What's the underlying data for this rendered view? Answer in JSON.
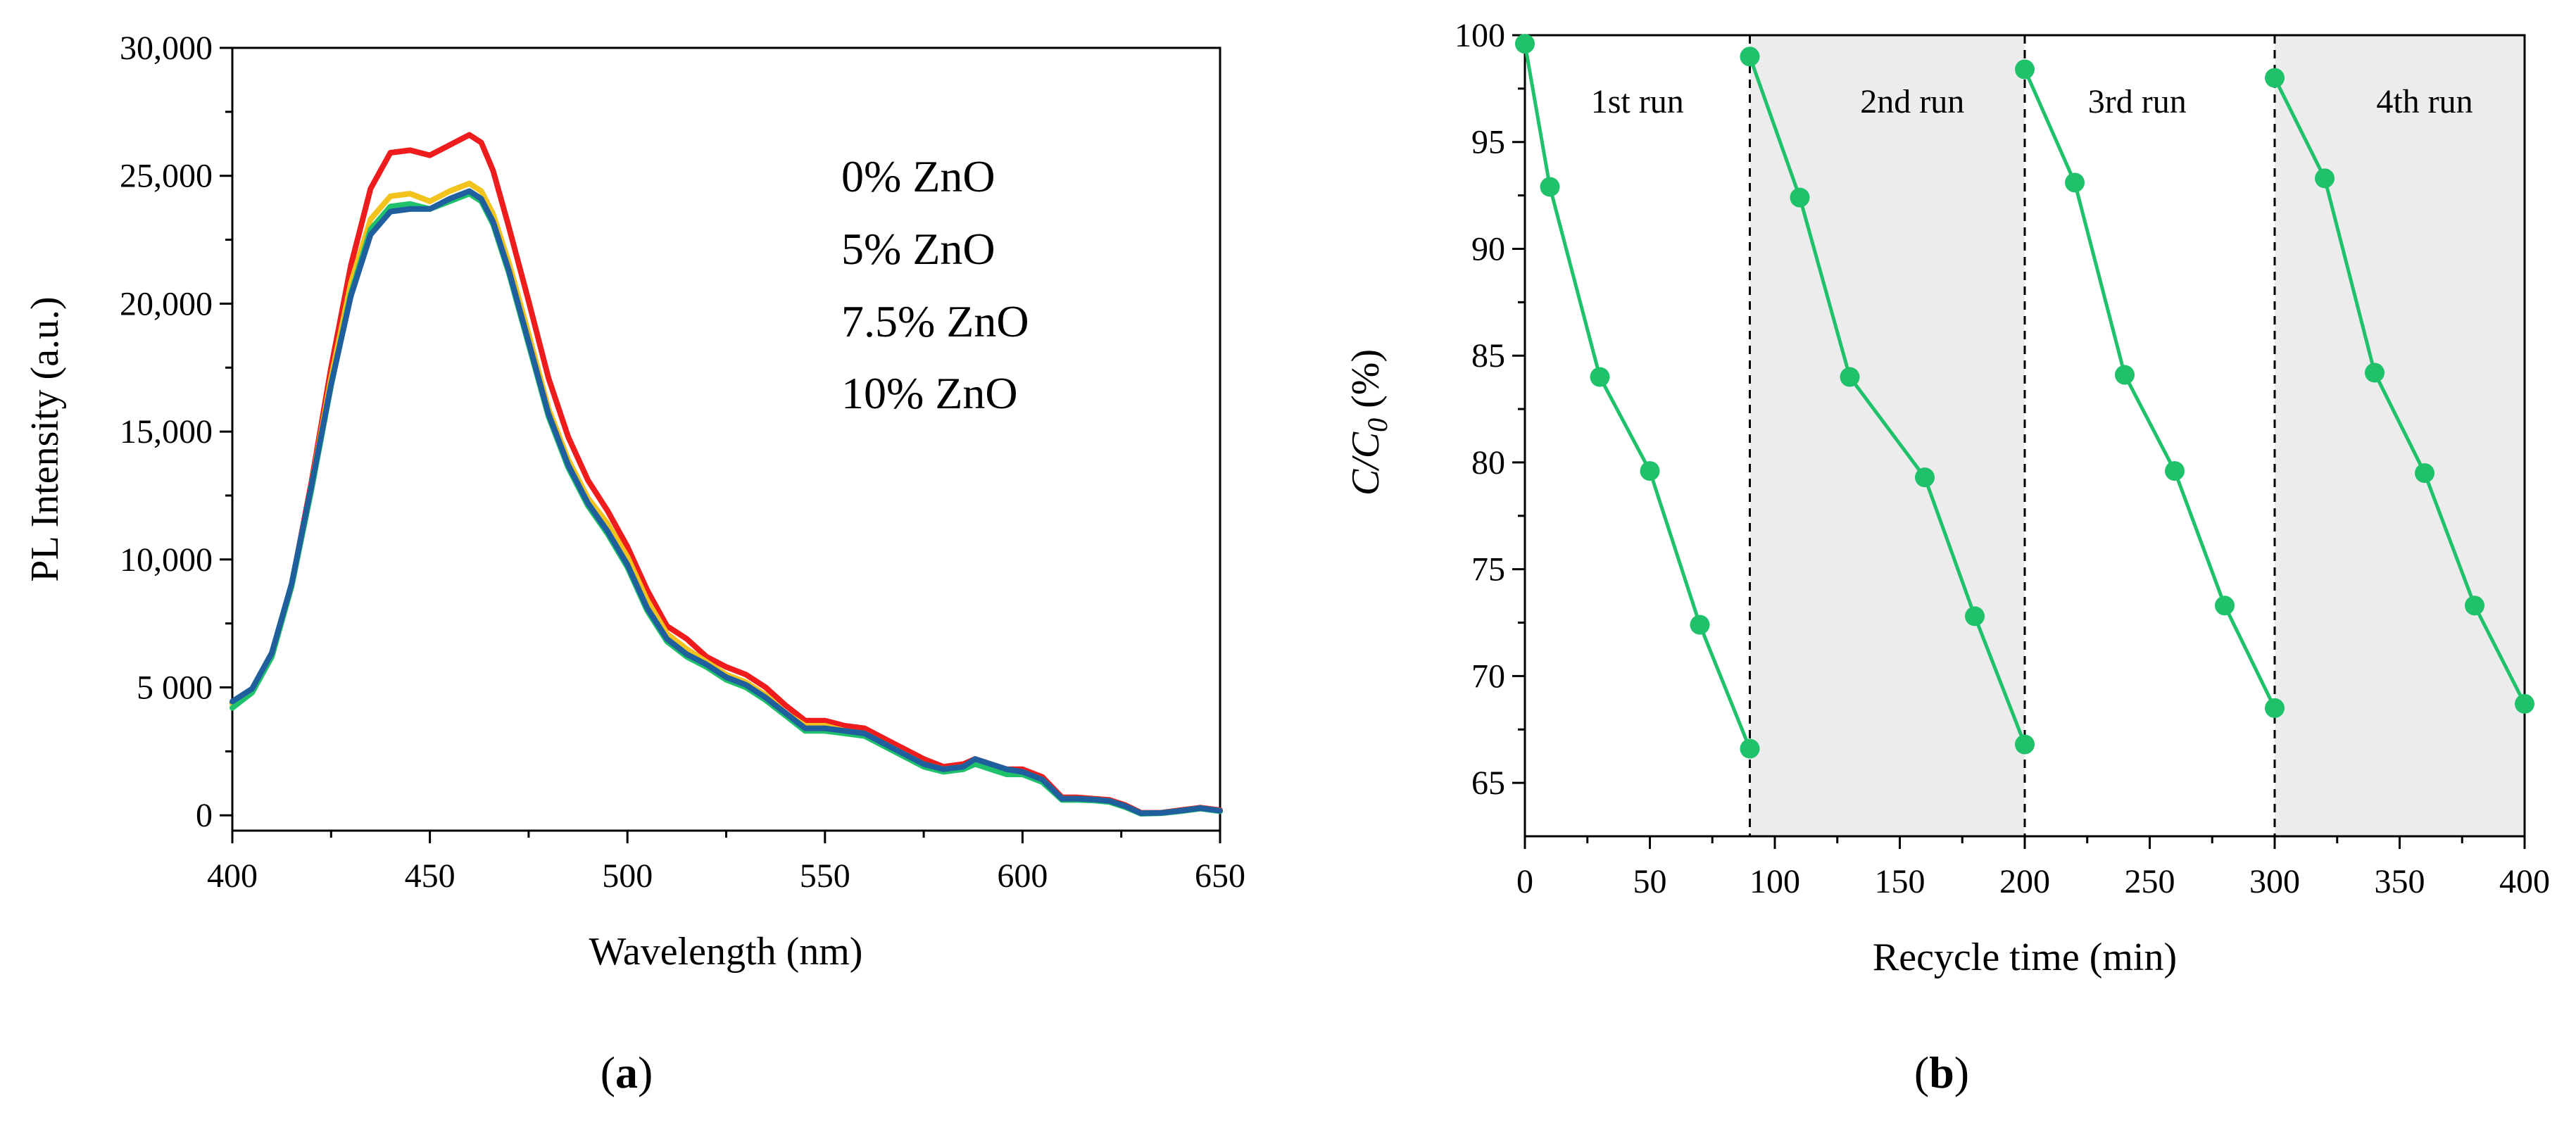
{
  "chart_data": [
    {
      "panel": "a",
      "type": "line",
      "xlabel": "Wavelength (nm)",
      "ylabel": "PL Intensity (a.u.)",
      "xlim": [
        400,
        650
      ],
      "ylim": [
        -600,
        30000
      ],
      "xticks": [
        400,
        450,
        500,
        550,
        600,
        650
      ],
      "xtick_labels": [
        "400",
        "450",
        "500",
        "550",
        "600",
        "650"
      ],
      "yticks": [
        0,
        5000,
        10000,
        15000,
        20000,
        25000,
        30000
      ],
      "ytick_labels": [
        "0",
        "5 000",
        "10,000",
        "15,000",
        "20,000",
        "25,000",
        "30,000"
      ],
      "legend_position": "top-right",
      "x": [
        400,
        405,
        410,
        415,
        420,
        425,
        430,
        435,
        440,
        445,
        450,
        455,
        460,
        463,
        466,
        470,
        475,
        480,
        485,
        490,
        495,
        500,
        505,
        510,
        515,
        520,
        525,
        530,
        535,
        540,
        545,
        550,
        555,
        560,
        565,
        570,
        575,
        580,
        585,
        588,
        592,
        596,
        600,
        605,
        610,
        614,
        618,
        622,
        626,
        630,
        635,
        640,
        645,
        650
      ],
      "series": [
        {
          "name": "0% ZnO",
          "color": "#ee1c1c",
          "values": [
            4400,
            4900,
            6300,
            9000,
            13000,
            17500,
            21500,
            24500,
            25900,
            26000,
            25800,
            26200,
            26600,
            26300,
            25200,
            23000,
            20100,
            17100,
            14800,
            13100,
            11900,
            10500,
            8800,
            7400,
            6900,
            6200,
            5800,
            5500,
            5000,
            4300,
            3700,
            3700,
            3500,
            3400,
            3000,
            2600,
            2200,
            1900,
            2000,
            2200,
            2000,
            1800,
            1800,
            1500,
            700,
            700,
            650,
            600,
            400,
            100,
            100,
            200,
            300,
            200
          ]
        },
        {
          "name": "5% ZnO",
          "color": "#f2c21d",
          "values": [
            4350,
            4850,
            6250,
            8950,
            12850,
            17100,
            20800,
            23300,
            24200,
            24300,
            24000,
            24400,
            24700,
            24400,
            23500,
            21600,
            18800,
            15900,
            13900,
            12400,
            11400,
            10100,
            8400,
            7100,
            6500,
            6000,
            5500,
            5200,
            4700,
            4000,
            3500,
            3500,
            3300,
            3200,
            2800,
            2400,
            2000,
            1800,
            1900,
            2100,
            1900,
            1700,
            1700,
            1400,
            650,
            650,
            620,
            560,
            350,
            80,
            90,
            180,
            280,
            180
          ]
        },
        {
          "name": "7.5% ZnO",
          "color": "#1fc16b",
          "values": [
            4200,
            4800,
            6200,
            8950,
            12700,
            16800,
            20400,
            22900,
            23800,
            23900,
            23700,
            24000,
            24300,
            24000,
            23100,
            21200,
            18400,
            15600,
            13600,
            12100,
            11000,
            9700,
            8000,
            6800,
            6200,
            5800,
            5300,
            5000,
            4500,
            3900,
            3300,
            3300,
            3200,
            3100,
            2700,
            2300,
            1900,
            1700,
            1800,
            2000,
            1800,
            1600,
            1600,
            1300,
            600,
            600,
            580,
            520,
            320,
            60,
            80,
            160,
            260,
            160
          ]
        },
        {
          "name": "10% ZnO",
          "color": "#1f5f9e",
          "values": [
            4450,
            4950,
            6350,
            9050,
            12850,
            16850,
            20300,
            22700,
            23600,
            23700,
            23700,
            24100,
            24400,
            24100,
            23200,
            21300,
            18500,
            15700,
            13700,
            12200,
            11100,
            9800,
            8100,
            6900,
            6300,
            5900,
            5400,
            5100,
            4600,
            4000,
            3400,
            3400,
            3300,
            3200,
            2800,
            2400,
            2000,
            1800,
            1900,
            2200,
            2000,
            1800,
            1700,
            1400,
            650,
            650,
            620,
            560,
            360,
            80,
            90,
            180,
            280,
            180
          ]
        }
      ]
    },
    {
      "panel": "b",
      "type": "line",
      "xlabel": "Recycle time (min)",
      "ylabel_main": "C/C",
      "ylabel_sub": "0",
      "ylabel_unit": " (%)",
      "xlim": [
        0,
        400
      ],
      "ylim": [
        62.5,
        100
      ],
      "xticks": [
        0,
        50,
        100,
        150,
        200,
        250,
        300,
        350,
        400
      ],
      "xtick_labels": [
        "0",
        "50",
        "100",
        "150",
        "200",
        "250",
        "300",
        "350",
        "400"
      ],
      "yticks": [
        65,
        70,
        75,
        80,
        85,
        90,
        95,
        100
      ],
      "ytick_labels": [
        "65",
        "70",
        "75",
        "80",
        "85",
        "90",
        "95",
        "100"
      ],
      "color": "#1fc16b",
      "shaded_spans": [
        [
          90,
          200
        ],
        [
          300,
          400
        ]
      ],
      "divider_x": [
        90,
        200,
        300
      ],
      "run_labels": [
        {
          "text": "1st run",
          "x": 45
        },
        {
          "text": "2nd run",
          "x": 155
        },
        {
          "text": "3rd run",
          "x": 245
        },
        {
          "text": "4th run",
          "x": 360
        }
      ],
      "series": [
        {
          "name": "1st run",
          "x": [
            0,
            10,
            30,
            50,
            70,
            90
          ],
          "values": [
            99.6,
            92.9,
            84.0,
            79.6,
            72.4,
            66.6
          ]
        },
        {
          "name": "2nd run",
          "x": [
            90,
            110,
            130,
            160,
            180,
            200
          ],
          "values": [
            99.0,
            92.4,
            84.0,
            79.3,
            72.8,
            66.8
          ]
        },
        {
          "name": "3rd run",
          "x": [
            200,
            220,
            240,
            260,
            280,
            300
          ],
          "values": [
            98.4,
            93.1,
            84.1,
            79.6,
            73.3,
            68.5
          ]
        },
        {
          "name": "4th run",
          "x": [
            300,
            320,
            340,
            360,
            380,
            400
          ],
          "values": [
            98.0,
            93.3,
            84.2,
            79.5,
            73.3,
            68.7
          ]
        }
      ]
    }
  ],
  "panel_labels": [
    "(a)",
    "(b)"
  ]
}
